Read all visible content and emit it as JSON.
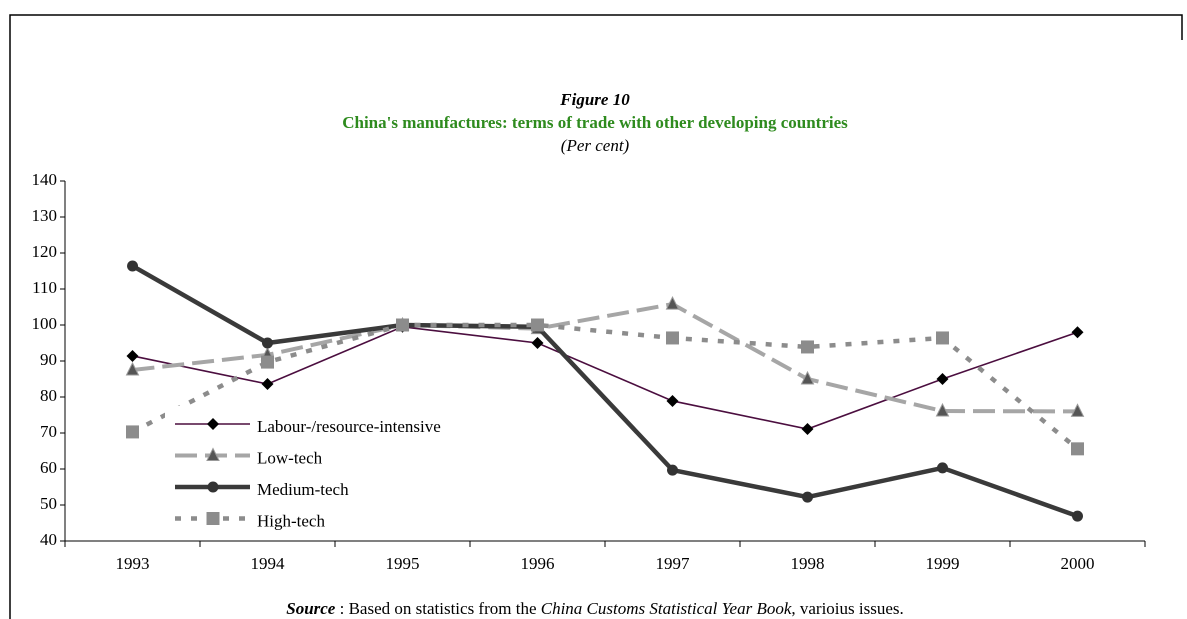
{
  "chart_data": {
    "type": "line",
    "title": "Figure 10",
    "subtitle": "China's manufactures: terms of trade with other developing countries",
    "unit": "(Per cent)",
    "source": {
      "label": "Source",
      "text": " :  Based on statistics from the ",
      "publication": "China Customs Statistical Year Book",
      "tail": ",  varioius issues."
    },
    "categories": [
      "1993",
      "1994",
      "1995",
      "1996",
      "1997",
      "1998",
      "1999",
      "2000"
    ],
    "series": [
      {
        "name": "Labour-/resource-intensive",
        "color": "#4b0e3f",
        "marker": "diamond",
        "values": [
          91.4,
          83.6,
          99.5,
          95,
          78.9,
          71.1,
          85,
          98
        ]
      },
      {
        "name": "Low-tech",
        "color": "#a6a6a6",
        "marker": "triangle",
        "values": [
          87.5,
          91.7,
          100,
          99,
          105.8,
          85,
          76.1,
          76
        ]
      },
      {
        "name": "Medium-tech",
        "color": "#3a3a3a",
        "marker": "circle",
        "values": [
          116.4,
          95,
          100,
          99.5,
          59.7,
          52.2,
          60.3,
          46.9
        ]
      },
      {
        "name": "High-tech",
        "color": "#8c8c8c",
        "marker": "square",
        "values": [
          70.3,
          89.7,
          100,
          100,
          96.4,
          93.9,
          96.4,
          65.6
        ]
      }
    ],
    "ylim": [
      40,
      140
    ],
    "yticks": [
      40,
      50,
      60,
      70,
      80,
      90,
      100,
      110,
      120,
      130,
      140
    ],
    "grid": false,
    "legend": "lower left"
  }
}
